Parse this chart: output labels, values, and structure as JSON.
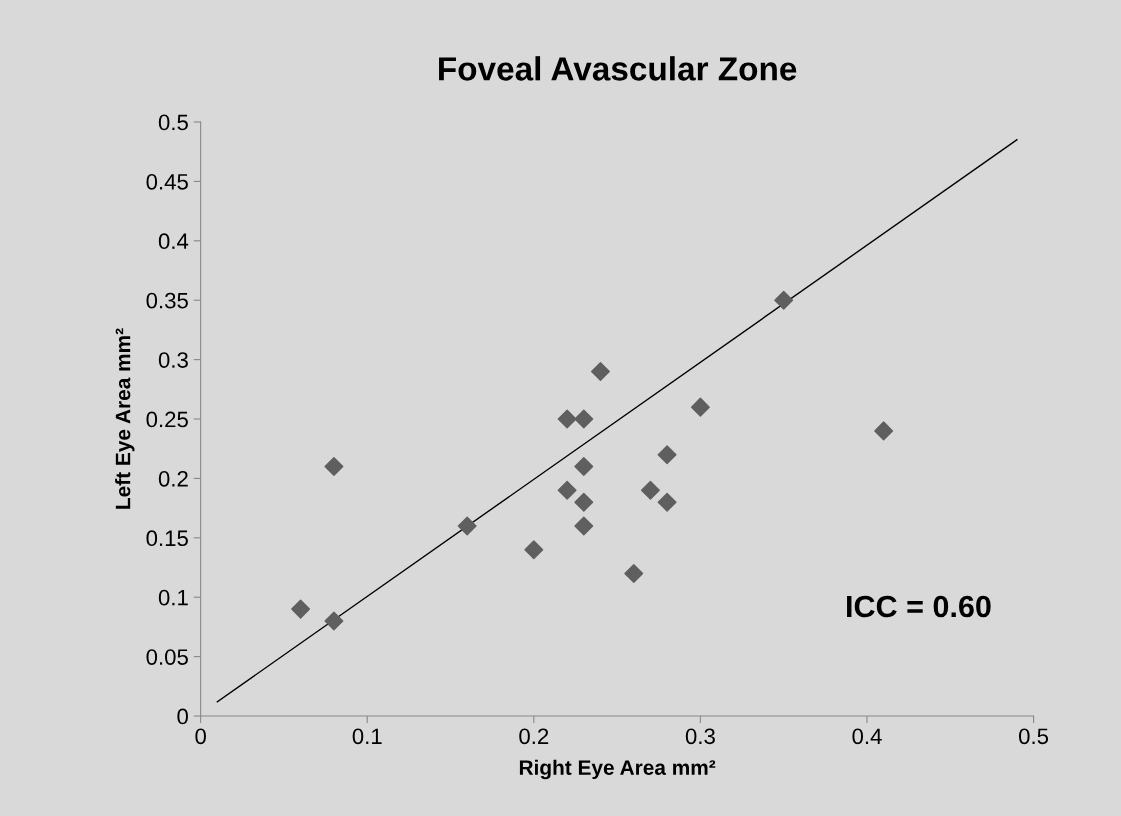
{
  "chart_data": {
    "type": "scatter",
    "title": "Foveal Avascular Zone",
    "xlabel": "Right Eye Area mm²",
    "ylabel": "Left Eye Area mm²",
    "x": [
      0.06,
      0.08,
      0.08,
      0.16,
      0.2,
      0.22,
      0.22,
      0.23,
      0.23,
      0.23,
      0.23,
      0.24,
      0.26,
      0.27,
      0.28,
      0.28,
      0.3,
      0.35,
      0.41
    ],
    "series": [
      {
        "color": "#5f5f5f",
        "marker": "diamond",
        "values": [
          0.09,
          0.08,
          0.21,
          0.16,
          0.14,
          0.25,
          0.19,
          0.25,
          0.21,
          0.18,
          0.16,
          0.29,
          0.12,
          0.19,
          0.22,
          0.18,
          0.26,
          0.35,
          0.24
        ]
      },
      {
        "type": "line",
        "color": "#000000",
        "marker": "none",
        "x": [
          0.01,
          0.49
        ],
        "values": [
          0.012,
          0.485
        ]
      }
    ],
    "xlim": [
      0,
      0.5
    ],
    "ylim": [
      0,
      0.5
    ],
    "xticks": [
      0,
      0.1,
      0.2,
      0.3,
      0.4,
      0.5
    ],
    "yticks": [
      0,
      0.05,
      0.1,
      0.15,
      0.2,
      0.25,
      0.3,
      0.35,
      0.4,
      0.45,
      0.5
    ],
    "annotations": [
      "ICC = 0.60"
    ],
    "grid": false,
    "legend": false
  }
}
